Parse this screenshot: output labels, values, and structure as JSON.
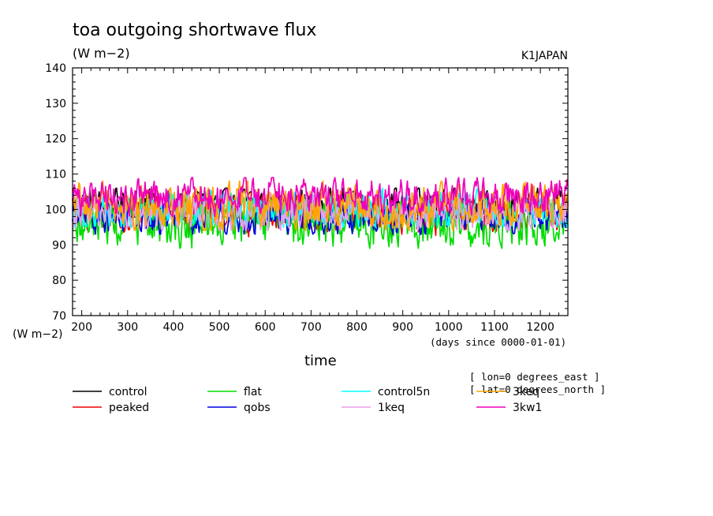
{
  "chart_data": {
    "type": "line",
    "title": "toa outgoing shortwave flux",
    "units": "(W m−2)",
    "model": "K1JAPAN",
    "ylabel": "(W m−2)",
    "xlabel": "time",
    "x_units": "(days since 0000-01-01)",
    "xlim": [
      180,
      1260
    ],
    "ylim": [
      70,
      140
    ],
    "x_ticks": [
      "200",
      "300",
      "400",
      "500",
      "600",
      "700",
      "800",
      "900",
      "1000",
      "1100",
      "1200"
    ],
    "y_ticks": [
      "70",
      "80",
      "90",
      "100",
      "110",
      "120",
      "130",
      "140"
    ],
    "annotation": [
      "[ lon=0 degrees_east ]",
      "[ lat=0 degrees_north ]"
    ],
    "grid": false,
    "legend_position": "bottom",
    "series": [
      {
        "name": "control",
        "color": "#000000",
        "mean": 101.5,
        "range": [
          97,
          106
        ]
      },
      {
        "name": "flat",
        "color": "#00dd00",
        "mean": 96.0,
        "range": [
          89,
          103
        ]
      },
      {
        "name": "control5n",
        "color": "#00ffff",
        "mean": 100.0,
        "range": [
          95,
          106
        ]
      },
      {
        "name": "3keq",
        "color": "#ffa500",
        "mean": 101.0,
        "range": [
          94,
          108
        ]
      },
      {
        "name": "peaked",
        "color": "#ee0000",
        "mean": 99.0,
        "range": [
          92,
          104
        ]
      },
      {
        "name": "qobs",
        "color": "#0000dd",
        "mean": 98.0,
        "range": [
          93,
          103
        ]
      },
      {
        "name": "1keq",
        "color": "#e9a1e9",
        "mean": 99.5,
        "range": [
          94,
          105
        ]
      },
      {
        "name": "3kw1",
        "color": "#ee00bb",
        "mean": 103.5,
        "range": [
          98,
          109
        ]
      }
    ]
  }
}
